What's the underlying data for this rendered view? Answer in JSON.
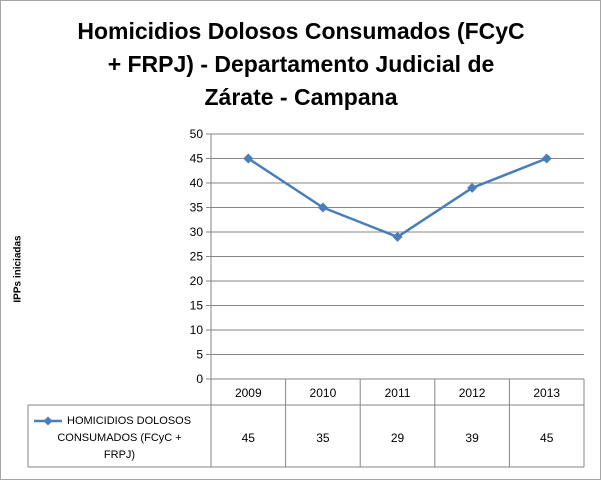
{
  "chart_data": {
    "type": "line",
    "title": "Homicidios Dolosos Consumados (FCyC + FRPJ) - Departamento Judicial de Zárate - Campana",
    "title_lines": [
      "Homicidios Dolosos Consumados (FCyC",
      "+ FRPJ) - Departamento Judicial de",
      "Zárate - Campana"
    ],
    "xlabel": "",
    "ylabel": "IPPs iniciadas",
    "categories": [
      "2009",
      "2010",
      "2011",
      "2012",
      "2013"
    ],
    "series": [
      {
        "name": "HOMICIDIOS DOLOSOS CONSUMADOS (FCyC + FRPJ)",
        "name_lines": [
          "HOMICIDIOS DOLOSOS",
          "CONSUMADOS (FCyC +",
          "FRPJ)"
        ],
        "values": [
          45,
          35,
          29,
          39,
          45
        ],
        "color": "#4a7ebb"
      }
    ],
    "ylim": [
      0,
      50
    ],
    "yticks": [
      0,
      5,
      10,
      15,
      20,
      25,
      30,
      35,
      40,
      45,
      50
    ],
    "grid": true,
    "legend": "data table, left of values",
    "marker": "diamond"
  }
}
